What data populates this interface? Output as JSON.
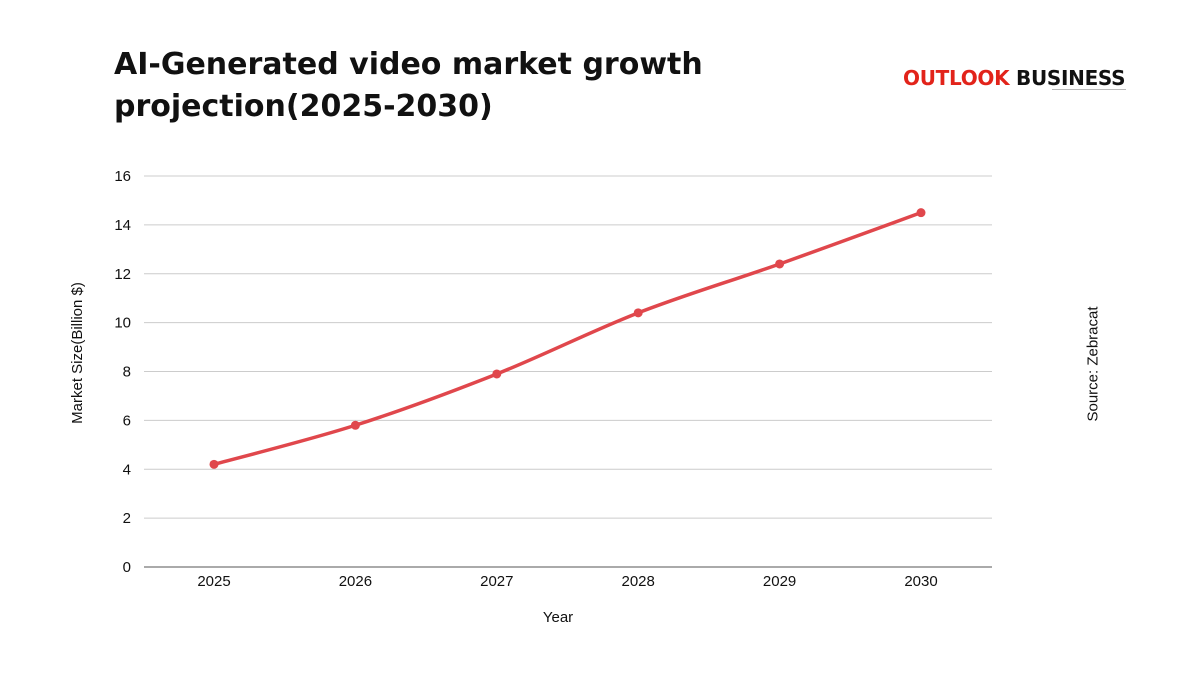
{
  "header": {
    "title": "AI-Generated video market growth projection(2025-2030)"
  },
  "brand": {
    "word1": "OUTLOOK",
    "word2": "BUSINESS",
    "accent_color": "#e2231a"
  },
  "source": "Source: Zebracat",
  "chart_data": {
    "type": "line",
    "title": "AI-Generated video market growth projection(2025-2030)",
    "xlabel": "Year",
    "ylabel": "Market Size(Billion $)",
    "x": [
      "2025",
      "2026",
      "2027",
      "2028",
      "2029",
      "2030"
    ],
    "series": [
      {
        "values": [
          4.2,
          5.8,
          7.9,
          10.4,
          12.4,
          14.5
        ],
        "color": "#e0474c"
      }
    ],
    "ylim": [
      0,
      16
    ],
    "yticks": [
      0,
      2,
      4,
      6,
      8,
      10,
      12,
      14,
      16
    ],
    "grid": true,
    "legend": "none"
  }
}
